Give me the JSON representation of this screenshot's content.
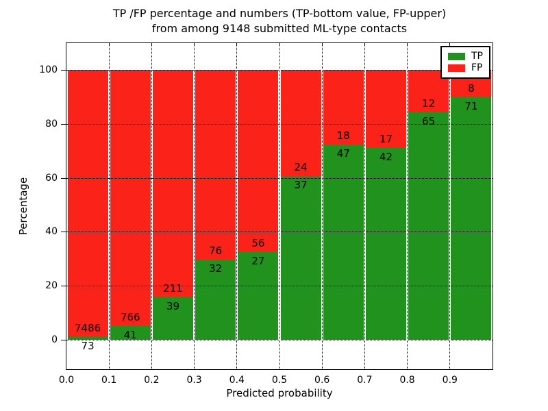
{
  "title": {
    "line1": "TP /FP percentage and numbers (TP-bottom value, FP-upper)",
    "line2": "from among 9148 submitted ML-type contacts"
  },
  "chart_data": {
    "type": "bar",
    "subtype": "stacked-percentage",
    "title": "TP /FP percentage and numbers (TP-bottom value, FP-upper) from among 9148 submitted ML-type contacts",
    "xlabel": "Predicted probability",
    "ylabel": "Percentage",
    "total_contacts": 9148,
    "xlim": [
      0.0,
      1.0
    ],
    "ylim": [
      -11,
      110
    ],
    "xticks": [
      "0.0",
      "0.1",
      "0.2",
      "0.3",
      "0.4",
      "0.5",
      "0.6",
      "0.7",
      "0.8",
      "0.9"
    ],
    "yticks": [
      0,
      20,
      40,
      60,
      80,
      100
    ],
    "grid": "dotted",
    "colors": {
      "tp": "#22921e",
      "fp": "#fb2219"
    },
    "legend": {
      "position": "upper-right",
      "entries": [
        {
          "label": "TP",
          "color": "#22921e"
        },
        {
          "label": "FP",
          "color": "#fb2219"
        }
      ]
    },
    "bins": [
      {
        "x0": 0.0,
        "x1": 0.1,
        "tp": 73,
        "fp": 7486,
        "tp_pct": 0.97
      },
      {
        "x0": 0.1,
        "x1": 0.2,
        "tp": 41,
        "fp": 766,
        "tp_pct": 5.08
      },
      {
        "x0": 0.2,
        "x1": 0.3,
        "tp": 39,
        "fp": 211,
        "tp_pct": 15.6
      },
      {
        "x0": 0.3,
        "x1": 0.4,
        "tp": 32,
        "fp": 76,
        "tp_pct": 29.63
      },
      {
        "x0": 0.4,
        "x1": 0.5,
        "tp": 27,
        "fp": 56,
        "tp_pct": 32.53
      },
      {
        "x0": 0.5,
        "x1": 0.6,
        "tp": 37,
        "fp": 24,
        "tp_pct": 60.66
      },
      {
        "x0": 0.6,
        "x1": 0.7,
        "tp": 47,
        "fp": 18,
        "tp_pct": 72.31
      },
      {
        "x0": 0.7,
        "x1": 0.8,
        "tp": 42,
        "fp": 17,
        "tp_pct": 71.19
      },
      {
        "x0": 0.8,
        "x1": 0.9,
        "tp": 65,
        "fp": 12,
        "tp_pct": 84.42
      },
      {
        "x0": 0.9,
        "x1": 1.0,
        "tp": 71,
        "fp": 8,
        "tp_pct": 89.87
      }
    ]
  }
}
